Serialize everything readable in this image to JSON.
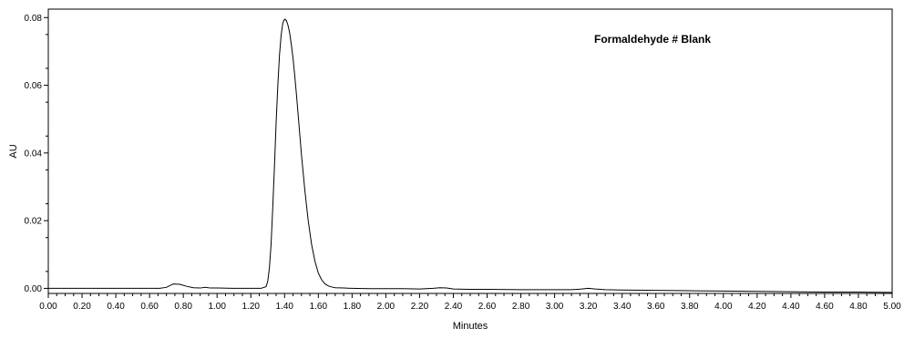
{
  "chart_data": {
    "type": "line",
    "annotation": "Formaldehyde  # Blank",
    "xlabel": "Minutes",
    "ylabel": "AU",
    "xlim": [
      0.0,
      5.0
    ],
    "ylim": [
      -0.0015,
      0.0825
    ],
    "x_ticks": [
      "0.00",
      "0.20",
      "0.40",
      "0.60",
      "0.80",
      "1.00",
      "1.20",
      "1.40",
      "1.60",
      "1.80",
      "2.00",
      "2.20",
      "2.40",
      "2.60",
      "2.80",
      "3.00",
      "3.20",
      "3.40",
      "3.60",
      "3.80",
      "4.00",
      "4.20",
      "4.40",
      "4.60",
      "4.80",
      "5.00"
    ],
    "y_ticks": [
      "0.00",
      "0.02",
      "0.04",
      "0.06",
      "0.08"
    ],
    "grid": false,
    "legend": "none",
    "line_color": "#000000",
    "series": [
      {
        "x": [
          0.0,
          0.2,
          0.4,
          0.6,
          0.66,
          0.7,
          0.74,
          0.78,
          0.82,
          0.86,
          0.9,
          0.93,
          0.96,
          1.0,
          1.1,
          1.2,
          1.26,
          1.29,
          1.3,
          1.31,
          1.32,
          1.33,
          1.34,
          1.35,
          1.36,
          1.37,
          1.38,
          1.39,
          1.4,
          1.41,
          1.42,
          1.43,
          1.44,
          1.45,
          1.46,
          1.47,
          1.48,
          1.49,
          1.5,
          1.52,
          1.54,
          1.56,
          1.58,
          1.6,
          1.62,
          1.64,
          1.66,
          1.68,
          1.7,
          1.75,
          1.8,
          1.9,
          2.0,
          2.1,
          2.2,
          2.28,
          2.32,
          2.36,
          2.4,
          2.5,
          2.6,
          2.8,
          3.0,
          3.1,
          3.16,
          3.2,
          3.24,
          3.3,
          3.4,
          3.6,
          3.8,
          4.0,
          4.2,
          4.4,
          4.6,
          4.8,
          5.0
        ],
        "y": [
          0.0,
          0.0,
          0.0,
          0.0,
          0.0,
          0.0003,
          0.0013,
          0.0012,
          0.0006,
          0.0002,
          0.0001,
          0.0003,
          0.0001,
          0.0001,
          0.0,
          0.0,
          0.0,
          0.0005,
          0.002,
          0.006,
          0.013,
          0.024,
          0.036,
          0.049,
          0.06,
          0.069,
          0.075,
          0.0785,
          0.0795,
          0.0792,
          0.0778,
          0.0755,
          0.072,
          0.068,
          0.063,
          0.0575,
          0.0515,
          0.0455,
          0.0395,
          0.029,
          0.02,
          0.013,
          0.008,
          0.0045,
          0.0025,
          0.0013,
          0.0007,
          0.0004,
          0.0002,
          0.0001,
          0.0,
          -0.0001,
          -0.0001,
          -0.0001,
          -0.0002,
          0.0,
          0.0002,
          0.0001,
          -0.0002,
          -0.0003,
          -0.0003,
          -0.0004,
          -0.0004,
          -0.0004,
          -0.0002,
          0.0,
          -0.0002,
          -0.0004,
          -0.0005,
          -0.0006,
          -0.0007,
          -0.0008,
          -0.0009,
          -0.001,
          -0.0011,
          -0.0011,
          -0.0012
        ]
      }
    ]
  }
}
